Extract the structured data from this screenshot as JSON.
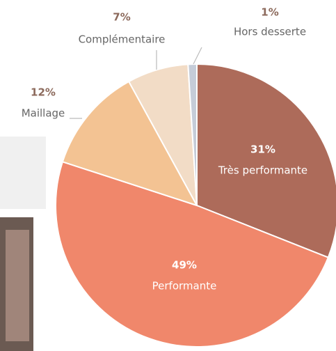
{
  "chart_data": {
    "type": "pie",
    "categories": [
      "Très performante",
      "Performante",
      "Maillage",
      "Complémentaire",
      "Hors desserte"
    ],
    "values": [
      31,
      49,
      12,
      7,
      1
    ],
    "value_labels": [
      "31%",
      "49%",
      "12%",
      "7%",
      "1%"
    ],
    "colors": [
      "#ad6b5a",
      "#f0876b",
      "#f3c393",
      "#f2dcc6",
      "#c5ccd8"
    ]
  }
}
